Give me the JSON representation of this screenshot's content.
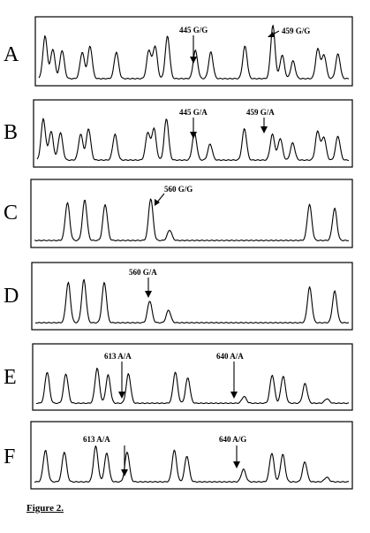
{
  "caption": "Figure 2.",
  "panels": [
    {
      "letter": "A",
      "annotations": [
        "445 G/G",
        "459 G/G"
      ],
      "trace": {
        "peaks": [
          [
            0.02,
            0.72
          ],
          [
            0.045,
            0.5
          ],
          [
            0.075,
            0.48
          ],
          [
            0.14,
            0.45
          ],
          [
            0.165,
            0.55
          ],
          [
            0.25,
            0.45
          ],
          [
            0.355,
            0.48
          ],
          [
            0.375,
            0.55
          ],
          [
            0.415,
            0.72
          ],
          [
            0.505,
            0.48
          ],
          [
            0.555,
            0.45
          ],
          [
            0.665,
            0.55
          ],
          [
            0.755,
            0.9
          ],
          [
            0.785,
            0.4
          ],
          [
            0.82,
            0.3
          ],
          [
            0.9,
            0.5
          ],
          [
            0.92,
            0.4
          ],
          [
            0.965,
            0.42
          ]
        ],
        "baseline": 0.93
      }
    },
    {
      "letter": "B",
      "annotations": [
        "445 G/A",
        "459 G/A"
      ],
      "trace": {
        "peaks": [
          [
            0.02,
            0.72
          ],
          [
            0.045,
            0.5
          ],
          [
            0.075,
            0.48
          ],
          [
            0.14,
            0.45
          ],
          [
            0.165,
            0.55
          ],
          [
            0.25,
            0.45
          ],
          [
            0.355,
            0.48
          ],
          [
            0.375,
            0.55
          ],
          [
            0.415,
            0.72
          ],
          [
            0.505,
            0.48
          ],
          [
            0.555,
            0.28
          ],
          [
            0.665,
            0.55
          ],
          [
            0.755,
            0.45
          ],
          [
            0.78,
            0.38
          ],
          [
            0.82,
            0.3
          ],
          [
            0.9,
            0.5
          ],
          [
            0.92,
            0.4
          ],
          [
            0.965,
            0.42
          ]
        ],
        "baseline": 0.93
      }
    },
    {
      "letter": "C",
      "annotations": [
        "560 G/G"
      ],
      "trace": {
        "peaks": [
          [
            0.105,
            0.65
          ],
          [
            0.16,
            0.7
          ],
          [
            0.225,
            0.62
          ],
          [
            0.37,
            0.72
          ],
          [
            0.43,
            0.18
          ],
          [
            0.875,
            0.62
          ],
          [
            0.955,
            0.55
          ]
        ],
        "baseline": 0.93
      }
    },
    {
      "letter": "D",
      "annotations": [
        "560 G/A"
      ],
      "trace": {
        "peaks": [
          [
            0.105,
            0.7
          ],
          [
            0.155,
            0.75
          ],
          [
            0.22,
            0.7
          ],
          [
            0.365,
            0.38
          ],
          [
            0.425,
            0.22
          ],
          [
            0.875,
            0.62
          ],
          [
            0.955,
            0.55
          ]
        ],
        "baseline": 0.93
      }
    },
    {
      "letter": "E",
      "annotations": [
        "613 A/A",
        "640 A/A"
      ],
      "trace": {
        "peaks": [
          [
            0.035,
            0.55
          ],
          [
            0.095,
            0.52
          ],
          [
            0.195,
            0.62
          ],
          [
            0.23,
            0.5
          ],
          [
            0.295,
            0.52
          ],
          [
            0.445,
            0.55
          ],
          [
            0.485,
            0.45
          ],
          [
            0.665,
            0.12
          ],
          [
            0.755,
            0.5
          ],
          [
            0.79,
            0.48
          ],
          [
            0.86,
            0.35
          ],
          [
            0.93,
            0.08
          ]
        ],
        "baseline": 0.93
      }
    },
    {
      "letter": "F",
      "annotations": [
        "613 A/A",
        "640 A/G"
      ],
      "trace": {
        "peaks": [
          [
            0.035,
            0.55
          ],
          [
            0.095,
            0.52
          ],
          [
            0.195,
            0.62
          ],
          [
            0.23,
            0.5
          ],
          [
            0.295,
            0.52
          ],
          [
            0.445,
            0.55
          ],
          [
            0.485,
            0.45
          ],
          [
            0.665,
            0.22
          ],
          [
            0.755,
            0.5
          ],
          [
            0.79,
            0.48
          ],
          [
            0.86,
            0.35
          ],
          [
            0.93,
            0.08
          ]
        ],
        "baseline": 0.93
      }
    }
  ]
}
